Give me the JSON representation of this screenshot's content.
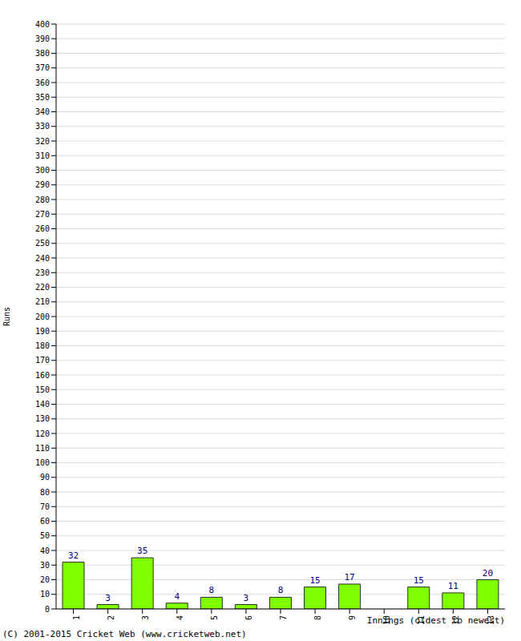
{
  "chart_data": {
    "type": "bar",
    "xlabel": "Innings (oldest to newest)",
    "ylabel": "Runs",
    "annotations": [
      "(C) 2001-2015 Cricket Web (www.cricketweb.net)"
    ],
    "categories": [
      "1",
      "2",
      "3",
      "4",
      "5",
      "6",
      "7",
      "8",
      "9",
      "10",
      "11",
      "12",
      "13"
    ],
    "values": [
      32,
      3,
      35,
      4,
      8,
      3,
      8,
      15,
      17,
      0,
      15,
      11,
      20
    ],
    "color": "#80ff00",
    "ylim": [
      0,
      400
    ],
    "yticks": [
      0,
      10,
      20,
      30,
      40,
      50,
      60,
      70,
      80,
      90,
      100,
      110,
      120,
      130,
      140,
      150,
      160,
      170,
      180,
      190,
      200,
      210,
      220,
      230,
      240,
      250,
      260,
      270,
      280,
      290,
      300,
      310,
      320,
      330,
      340,
      350,
      360,
      370,
      380,
      390,
      400
    ],
    "grid": true,
    "data_labels": true
  }
}
